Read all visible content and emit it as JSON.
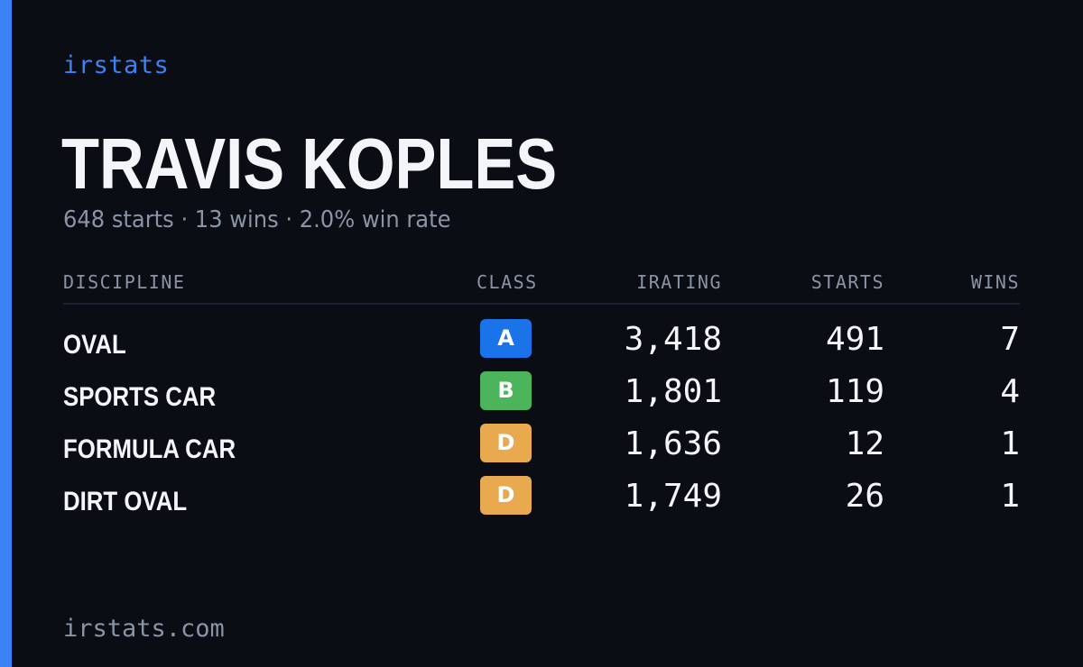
{
  "brand": "irstats",
  "driver": {
    "name": "TRAVIS KOPLES",
    "summary": "648 starts · 13 wins · 2.0% win rate"
  },
  "table": {
    "headers": {
      "discipline": "DISCIPLINE",
      "class": "CLASS",
      "irating": "IRATING",
      "starts": "STARTS",
      "wins": "WINS"
    },
    "rows": [
      {
        "discipline": "OVAL",
        "class": "A",
        "class_color": "#1a73e8",
        "irating": "3,418",
        "starts": "491",
        "wins": "7"
      },
      {
        "discipline": "SPORTS CAR",
        "class": "B",
        "class_color": "#4cb45a",
        "irating": "1,801",
        "starts": "119",
        "wins": "4"
      },
      {
        "discipline": "FORMULA CAR",
        "class": "D",
        "class_color": "#e8a94f",
        "irating": "1,636",
        "starts": "12",
        "wins": "1"
      },
      {
        "discipline": "DIRT OVAL",
        "class": "D",
        "class_color": "#e8a94f",
        "irating": "1,749",
        "starts": "26",
        "wins": "1"
      }
    ]
  },
  "footer": {
    "domain": "irstats.com"
  },
  "colors": {
    "background": "#0a0d14",
    "accent": "#3b82f6",
    "text_primary": "#f3f5f9",
    "text_muted": "#8a94a6"
  }
}
